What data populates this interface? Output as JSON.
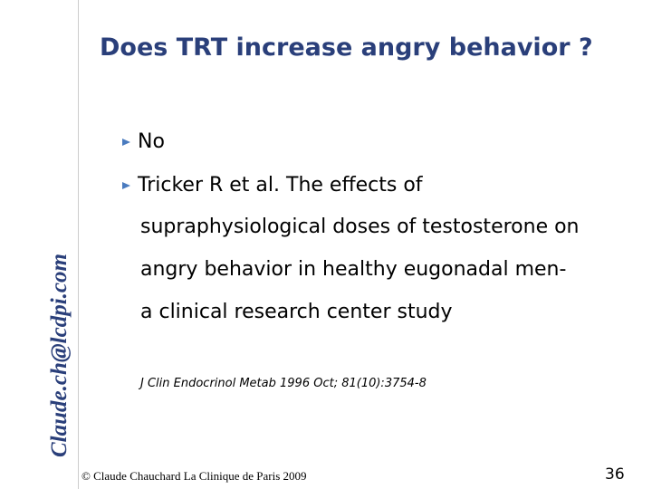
{
  "header": {
    "title": "Does TRT increase angry behavior ?"
  },
  "sidebar": {
    "text": "Claude.ch@lcdpi.com"
  },
  "body": {
    "bullets": [
      "No",
      "Tricker R et al. The effects of"
    ],
    "continuation": [
      "supraphysiological doses of testosterone on",
      "angry behavior in healthy eugonadal men-",
      "a clinical research center study"
    ],
    "citation": "J Clin Endocrinol Metab 1996 Oct; 81(10):3754-8"
  },
  "footer": {
    "copyright": "© Claude Chauchard La Clinique de Paris 2009",
    "page": "36"
  }
}
